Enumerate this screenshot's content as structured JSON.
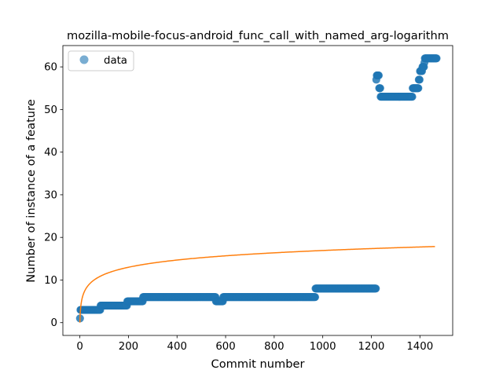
{
  "chart_data": {
    "type": "scatter",
    "title": "mozilla-mobile-focus-android_func_call_with_named_arg-logarithm",
    "xlabel": "Commit number",
    "ylabel": "Number of instance of a feature",
    "xlim": [
      -70,
      1535
    ],
    "ylim": [
      -3,
      65
    ],
    "xticks": [
      0,
      200,
      400,
      600,
      800,
      1000,
      1200,
      1400
    ],
    "yticks": [
      0,
      10,
      20,
      30,
      40,
      50,
      60
    ],
    "grid": false,
    "legend": {
      "position": "upper-left",
      "entries": [
        "data"
      ]
    },
    "colors": {
      "data": "#1f77b4",
      "fit": "#ff7f0e"
    },
    "series": [
      {
        "name": "data",
        "kind": "scatter",
        "segments": [
          {
            "x_start": 0,
            "x_end": 2,
            "y": 1
          },
          {
            "x_start": 2,
            "x_end": 85,
            "y": 3
          },
          {
            "x_start": 85,
            "x_end": 195,
            "y": 4
          },
          {
            "x_start": 195,
            "x_end": 260,
            "y": 5
          },
          {
            "x_start": 260,
            "x_end": 560,
            "y": 6
          },
          {
            "x_start": 560,
            "x_end": 590,
            "y": 5
          },
          {
            "x_start": 590,
            "x_end": 970,
            "y": 6
          },
          {
            "x_start": 970,
            "x_end": 1220,
            "y": 8
          },
          {
            "x_start": 1220,
            "x_end": 1222,
            "y": 57
          },
          {
            "x_start": 1222,
            "x_end": 1232,
            "y": 58
          },
          {
            "x_start": 1232,
            "x_end": 1238,
            "y": 55
          },
          {
            "x_start": 1238,
            "x_end": 1370,
            "y": 53
          },
          {
            "x_start": 1370,
            "x_end": 1395,
            "y": 55
          },
          {
            "x_start": 1395,
            "x_end": 1400,
            "y": 57
          },
          {
            "x_start": 1400,
            "x_end": 1410,
            "y": 59
          },
          {
            "x_start": 1410,
            "x_end": 1418,
            "y": 60
          },
          {
            "x_start": 1418,
            "x_end": 1420,
            "y": 61
          },
          {
            "x_start": 1420,
            "x_end": 1470,
            "y": 62
          }
        ]
      },
      {
        "name": "",
        "kind": "line",
        "equation": "y = 2.45 * ln(x + 1)",
        "x_range": [
          0,
          1462
        ]
      }
    ]
  }
}
